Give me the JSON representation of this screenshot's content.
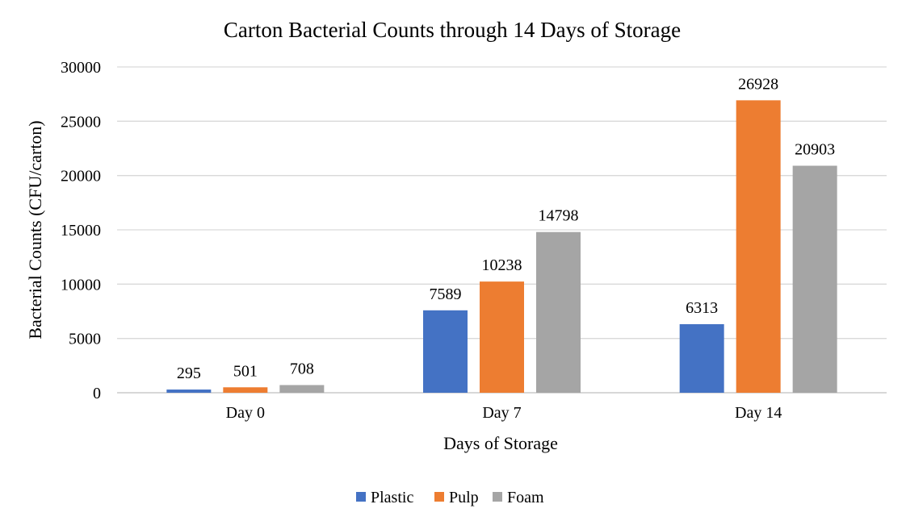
{
  "chart_data": {
    "type": "bar",
    "title": "Carton Bacterial Counts through 14 Days of Storage",
    "xlabel": "Days of Storage",
    "ylabel": "Bacterial Counts (CFU/carton)",
    "categories": [
      "Day 0",
      "Day 7",
      "Day 14"
    ],
    "ylim": [
      0,
      30000
    ],
    "yticks": [
      0,
      5000,
      10000,
      15000,
      20000,
      25000,
      30000
    ],
    "grid": true,
    "legend_position": "bottom",
    "series": [
      {
        "name": "Plastic",
        "color": "#4472C4",
        "values": [
          295,
          7589,
          6313
        ]
      },
      {
        "name": "Pulp",
        "color": "#ED7D31",
        "values": [
          501,
          10238,
          26928
        ]
      },
      {
        "name": "Foam",
        "color": "#A5A5A5",
        "values": [
          708,
          14798,
          20903
        ]
      }
    ]
  }
}
